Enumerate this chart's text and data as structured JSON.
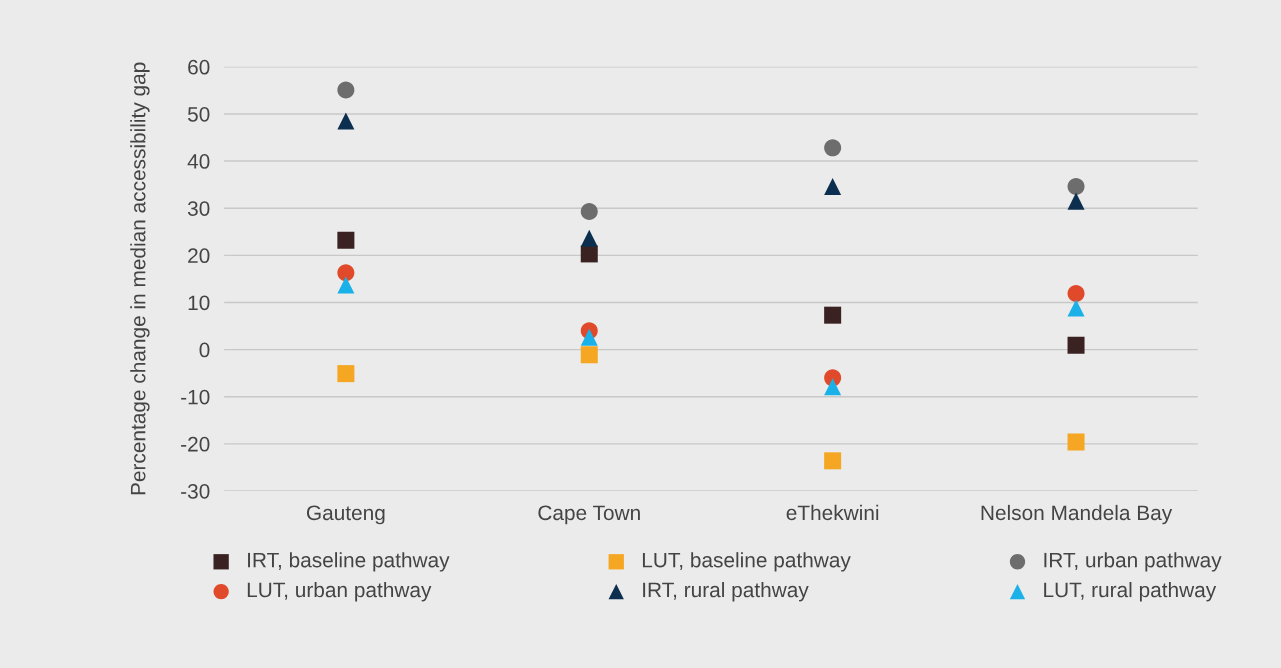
{
  "chart_data": {
    "type": "scatter",
    "ylabel": "Percentage change in median accessibility gap",
    "categories": [
      "Gauteng",
      "Cape Town",
      "eThekwini",
      "Nelson Mandela Bay"
    ],
    "series": [
      {
        "name": "IRT, baseline pathway",
        "color": "#3b2222",
        "marker": "square",
        "values": [
          23.2,
          20.3,
          7.3,
          0.9
        ]
      },
      {
        "name": "LUT, baseline pathway",
        "color": "#f5a623",
        "marker": "square",
        "values": [
          -5.1,
          -1.1,
          -23.6,
          -19.6
        ]
      },
      {
        "name": "IRT, urban pathway",
        "color": "#6d6d6d",
        "marker": "circle",
        "values": [
          55.1,
          29.3,
          42.8,
          34.6
        ]
      },
      {
        "name": "LUT, urban pathway",
        "color": "#e0492a",
        "marker": "circle",
        "values": [
          16.3,
          4.0,
          -6.0,
          11.9
        ]
      },
      {
        "name": "IRT, rural pathway",
        "color": "#0d2f4f",
        "marker": "triangle",
        "values": [
          48.5,
          23.6,
          34.6,
          31.5
        ]
      },
      {
        "name": "LUT, rural pathway",
        "color": "#1ab1e8",
        "marker": "triangle",
        "values": [
          13.7,
          2.6,
          -7.9,
          8.8
        ]
      }
    ],
    "ylim": [
      -30,
      60
    ],
    "yticks": [
      -30,
      -20,
      -10,
      0,
      10,
      20,
      30,
      40,
      50,
      60
    ],
    "grid": "y",
    "legend": "bottom"
  }
}
